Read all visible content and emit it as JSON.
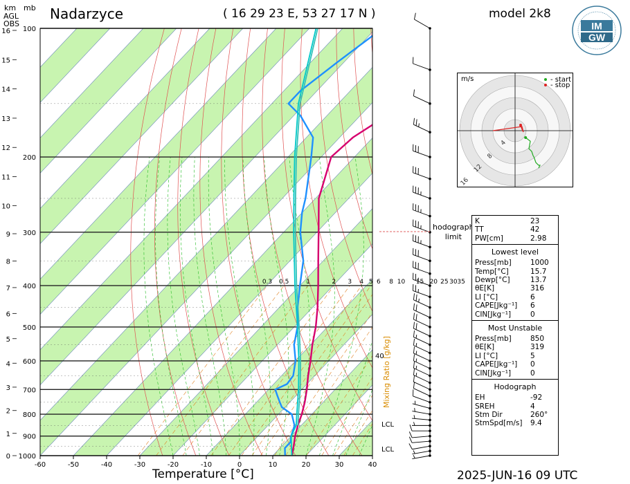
{
  "header": {
    "station": "Nadarzyce",
    "coords": "( 16 29 23  E, 53 27 17 N )",
    "model": "model 2k8",
    "valid_time": "2025-JUN-16   09 UTC",
    "x_axis_title": "Temperature [°C]",
    "left_units": {
      "km": "km",
      "agl": "AGL",
      "obs": "OBS",
      "mb": "mb"
    }
  },
  "logo": {
    "text1": "IM",
    "text2": "GW"
  },
  "chart_data": {
    "type": "skew-t",
    "title": "Nadarzyce",
    "xlabel": "Temperature [°C]",
    "ylabel": "mb",
    "temperature_ticks": [
      -60,
      -50,
      -40,
      -30,
      -20,
      -10,
      0,
      10,
      20,
      30,
      40
    ],
    "xlim": [
      -60,
      40
    ],
    "pressure_range": [
      1000,
      100
    ],
    "pressure_labels": [
      100,
      200,
      300,
      400,
      500,
      600,
      700,
      800,
      900,
      1000
    ],
    "height_labels_km": [
      0,
      1,
      2,
      3,
      4,
      5,
      6,
      7,
      8,
      9,
      10,
      11,
      12,
      13,
      14,
      15,
      16
    ],
    "mixing_ratio_labels": [
      "0.3",
      "0.5",
      "1",
      "2",
      "3",
      "4",
      "5",
      "6",
      "8",
      "10",
      "15",
      "20",
      "25",
      "30",
      "35"
    ],
    "mixing_ratio_title": "Mixing Ratio [g/kg]",
    "extra_label_40": "40",
    "lcl_labels": [
      "LCL",
      "LCL"
    ],
    "series": [
      {
        "name": "temperature",
        "color": "#d6006e",
        "points": [
          [
            1000,
            15.7
          ],
          [
            950,
            13.6
          ],
          [
            900,
            11.2
          ],
          [
            850,
            9.0
          ],
          [
            800,
            7.0
          ],
          [
            750,
            4.5
          ],
          [
            700,
            1.5
          ],
          [
            650,
            -2.0
          ],
          [
            600,
            -5.5
          ],
          [
            550,
            -9.5
          ],
          [
            500,
            -13.5
          ],
          [
            450,
            -18.5
          ],
          [
            400,
            -24.5
          ],
          [
            350,
            -31.5
          ],
          [
            300,
            -39.5
          ],
          [
            250,
            -49.0
          ],
          [
            200,
            -57.0
          ],
          [
            180,
            -56.0
          ],
          [
            160,
            -52.0
          ],
          [
            140,
            -51.0
          ],
          [
            120,
            -52.0
          ],
          [
            100,
            -52.0
          ]
        ]
      },
      {
        "name": "dewpoint",
        "color": "#1e90ff",
        "points": [
          [
            1000,
            13.7
          ],
          [
            960,
            11.5
          ],
          [
            930,
            11.5
          ],
          [
            900,
            10.0
          ],
          [
            850,
            8.0
          ],
          [
            800,
            4.0
          ],
          [
            770,
            -1.0
          ],
          [
            750,
            -3.0
          ],
          [
            720,
            -6.0
          ],
          [
            700,
            -8.0
          ],
          [
            680,
            -6.0
          ],
          [
            650,
            -6.5
          ],
          [
            600,
            -10.0
          ],
          [
            550,
            -15.0
          ],
          [
            500,
            -19.0
          ],
          [
            450,
            -24.5
          ],
          [
            400,
            -30.0
          ],
          [
            350,
            -36.0
          ],
          [
            300,
            -45.0
          ],
          [
            270,
            -50.0
          ],
          [
            250,
            -53.0
          ],
          [
            200,
            -63.0
          ],
          [
            180,
            -68.0
          ],
          [
            160,
            -78.0
          ],
          [
            150,
            -85.0
          ],
          [
            140,
            -85.0
          ],
          [
            120,
            -82.0
          ],
          [
            100,
            -78.0
          ]
        ]
      },
      {
        "name": "parcel-lowest",
        "color": "#00c8c8",
        "points": [
          [
            1000,
            15.7
          ],
          [
            900,
            10.0
          ],
          [
            850,
            8.5
          ],
          [
            800,
            5.5
          ],
          [
            700,
            -1.0
          ],
          [
            600,
            -9.0
          ],
          [
            500,
            -19.0
          ],
          [
            400,
            -31.5
          ],
          [
            300,
            -47.0
          ],
          [
            250,
            -56.5
          ],
          [
            200,
            -68.0
          ],
          [
            150,
            -82.0
          ],
          [
            100,
            -98.0
          ]
        ]
      },
      {
        "name": "parcel-most-unstable",
        "color": "#34c0b8",
        "points": [
          [
            850,
            9.0
          ],
          [
            800,
            6.0
          ],
          [
            700,
            -0.5
          ],
          [
            600,
            -8.5
          ],
          [
            500,
            -18.5
          ],
          [
            400,
            -31.0
          ],
          [
            300,
            -46.5
          ],
          [
            250,
            -56.0
          ],
          [
            200,
            -67.5
          ],
          [
            150,
            -81.5
          ],
          [
            100,
            -97.5
          ]
        ]
      }
    ],
    "wind_profile_kt": [
      {
        "p": 1000,
        "dir": 260,
        "spd": 5
      },
      {
        "p": 975,
        "dir": 260,
        "spd": 8
      },
      {
        "p": 950,
        "dir": 260,
        "spd": 10
      },
      {
        "p": 925,
        "dir": 265,
        "spd": 10
      },
      {
        "p": 900,
        "dir": 265,
        "spd": 10
      },
      {
        "p": 875,
        "dir": 270,
        "spd": 10
      },
      {
        "p": 850,
        "dir": 270,
        "spd": 8
      },
      {
        "p": 825,
        "dir": 275,
        "spd": 6
      },
      {
        "p": 800,
        "dir": 280,
        "spd": 5
      },
      {
        "p": 775,
        "dir": 285,
        "spd": 5
      },
      {
        "p": 750,
        "dir": 290,
        "spd": 10
      },
      {
        "p": 725,
        "dir": 295,
        "spd": 10
      },
      {
        "p": 700,
        "dir": 295,
        "spd": 10
      },
      {
        "p": 675,
        "dir": 295,
        "spd": 15
      },
      {
        "p": 650,
        "dir": 295,
        "spd": 15
      },
      {
        "p": 625,
        "dir": 295,
        "spd": 15
      },
      {
        "p": 600,
        "dir": 295,
        "spd": 15
      },
      {
        "p": 575,
        "dir": 295,
        "spd": 15
      },
      {
        "p": 550,
        "dir": 295,
        "spd": 15
      },
      {
        "p": 525,
        "dir": 295,
        "spd": 20
      },
      {
        "p": 500,
        "dir": 295,
        "spd": 20
      },
      {
        "p": 475,
        "dir": 295,
        "spd": 20
      },
      {
        "p": 450,
        "dir": 295,
        "spd": 25
      },
      {
        "p": 425,
        "dir": 290,
        "spd": 25
      },
      {
        "p": 400,
        "dir": 290,
        "spd": 25
      },
      {
        "p": 375,
        "dir": 290,
        "spd": 30
      },
      {
        "p": 350,
        "dir": 290,
        "spd": 30
      },
      {
        "p": 325,
        "dir": 290,
        "spd": 35
      },
      {
        "p": 300,
        "dir": 290,
        "spd": 35
      },
      {
        "p": 275,
        "dir": 290,
        "spd": 35
      },
      {
        "p": 250,
        "dir": 290,
        "spd": 35
      },
      {
        "p": 225,
        "dir": 290,
        "spd": 30
      },
      {
        "p": 200,
        "dir": 290,
        "spd": 30
      },
      {
        "p": 175,
        "dir": 295,
        "spd": 25
      },
      {
        "p": 150,
        "dir": 295,
        "spd": 10
      },
      {
        "p": 125,
        "dir": 290,
        "spd": 10
      },
      {
        "p": 100,
        "dir": 300,
        "spd": 10
      }
    ],
    "grid": true
  },
  "hodograph": {
    "unit": "m/s",
    "legend_start": "- start",
    "legend_stop": "- stop",
    "ring_labels": [
      "4",
      "8",
      "12",
      "16"
    ],
    "hodograph_limit_label": "hodograph\nlimit",
    "track_uv": [
      [
        3.8,
        -2.5
      ],
      [
        5.5,
        -3.8
      ],
      [
        5.0,
        -6.5
      ],
      [
        6.0,
        -7.5
      ],
      [
        6.5,
        -9.0
      ],
      [
        6.8,
        -9.5
      ],
      [
        7.5,
        -11.5
      ],
      [
        8.5,
        -12.5
      ],
      [
        9.0,
        -12.5
      ],
      [
        8.5,
        -13.5
      ]
    ],
    "storm_uv": [
      [
        -8.0,
        0.0
      ],
      [
        2.5,
        1.5
      ],
      [
        3.0,
        -0.5
      ],
      [
        2.5,
        0.5
      ],
      [
        2.0,
        2.0
      ]
    ],
    "start_color": "#22aa22",
    "stop_color": "#dd2222"
  },
  "indices": {
    "top": [
      {
        "k": "K",
        "v": "23"
      },
      {
        "k": "TT",
        "v": "42"
      },
      {
        "k": "PW[cm]",
        "v": "2.98"
      }
    ],
    "lowest": {
      "title": "Lowest level",
      "rows": [
        {
          "k": "Press[mb]",
          "v": "1000"
        },
        {
          "k": "Temp[°C]",
          "v": "15.7"
        },
        {
          "k": "Dewp[°C]",
          "v": "13.7"
        },
        {
          "k": "θE[K]",
          "v": "316"
        },
        {
          "k": "LI [°C]",
          "v": "6"
        },
        {
          "k": "CAPE[Jkg⁻¹]",
          "v": "6"
        },
        {
          "k": "CIN[Jkg⁻¹]",
          "v": "0"
        }
      ]
    },
    "unstable": {
      "title": "Most Unstable",
      "rows": [
        {
          "k": "Press[mb]",
          "v": "850"
        },
        {
          "k": "θE[K]",
          "v": "319"
        },
        {
          "k": "LI [°C]",
          "v": "5"
        },
        {
          "k": "CAPE[Jkg⁻¹]",
          "v": "0"
        },
        {
          "k": "CIN[Jkg⁻¹]",
          "v": "0"
        }
      ]
    },
    "hodograph": {
      "title": "Hodograph",
      "rows": [
        {
          "k": "EH",
          "v": "-92"
        },
        {
          "k": "SREH",
          "v": "4"
        },
        {
          "k": "Stm Dir",
          "v": "260°"
        },
        {
          "k": "StmSpd[m/s]",
          "v": "9.4"
        }
      ]
    }
  }
}
